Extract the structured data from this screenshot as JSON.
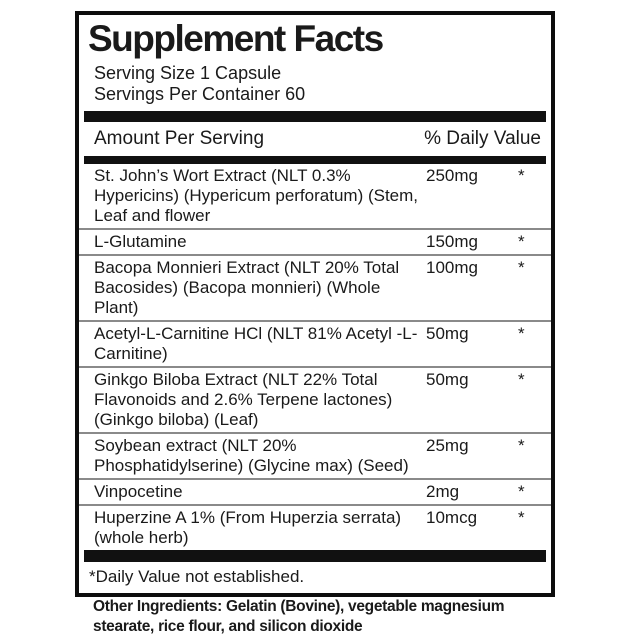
{
  "label": {
    "title": "Supplement Facts",
    "serving_size": "Serving Size 1 Capsule",
    "servings_per_container": "Servings Per Container 60",
    "header": {
      "amount_per_serving": "Amount Per Serving",
      "daily_value": "% Daily Value"
    },
    "rows": [
      {
        "name": "St. John’s Wort Extract (NLT 0.3% Hypericins) (Hypericum perforatum) (Stem, Leaf and flower",
        "amount": "250mg",
        "dv": "*"
      },
      {
        "name": "L-Glutamine",
        "amount": "150mg",
        "dv": "*"
      },
      {
        "name": "Bacopa Monnieri Extract (NLT 20% Total Bacosides) (Bacopa monnieri) (Whole Plant)",
        "amount": "100mg",
        "dv": "*"
      },
      {
        "name": "Acetyl-L-Carnitine HCl (NLT 81% Acetyl -L-Carnitine)",
        "amount": "50mg",
        "dv": "*"
      },
      {
        "name": "Ginkgo Biloba Extract (NLT 22% Total Flavonoids and 2.6% Terpene lactones) (Ginkgo biloba) (Leaf)",
        "amount": "50mg",
        "dv": "*"
      },
      {
        "name": "Soybean extract (NLT 20% Phosphatidylserine) (Glycine max) (Seed)",
        "amount": "25mg",
        "dv": "*"
      },
      {
        "name": "Vinpocetine",
        "amount": "2mg",
        "dv": "*"
      },
      {
        "name": "Huperzine A 1% (From Huperzia serrata) (whole herb)",
        "amount": "10mcg",
        "dv": "*"
      }
    ],
    "footnote": "*Daily Value not established.",
    "other_ingredients": "Other Ingredients: Gelatin (Bovine), vegetable magnesium stearate, rice flour, and silicon dioxide"
  },
  "colors": {
    "border": "#0d0d0d",
    "bar": "#111111",
    "separator": "#8a8a8a",
    "text": "#1a1a1a",
    "background": "#ffffff"
  }
}
